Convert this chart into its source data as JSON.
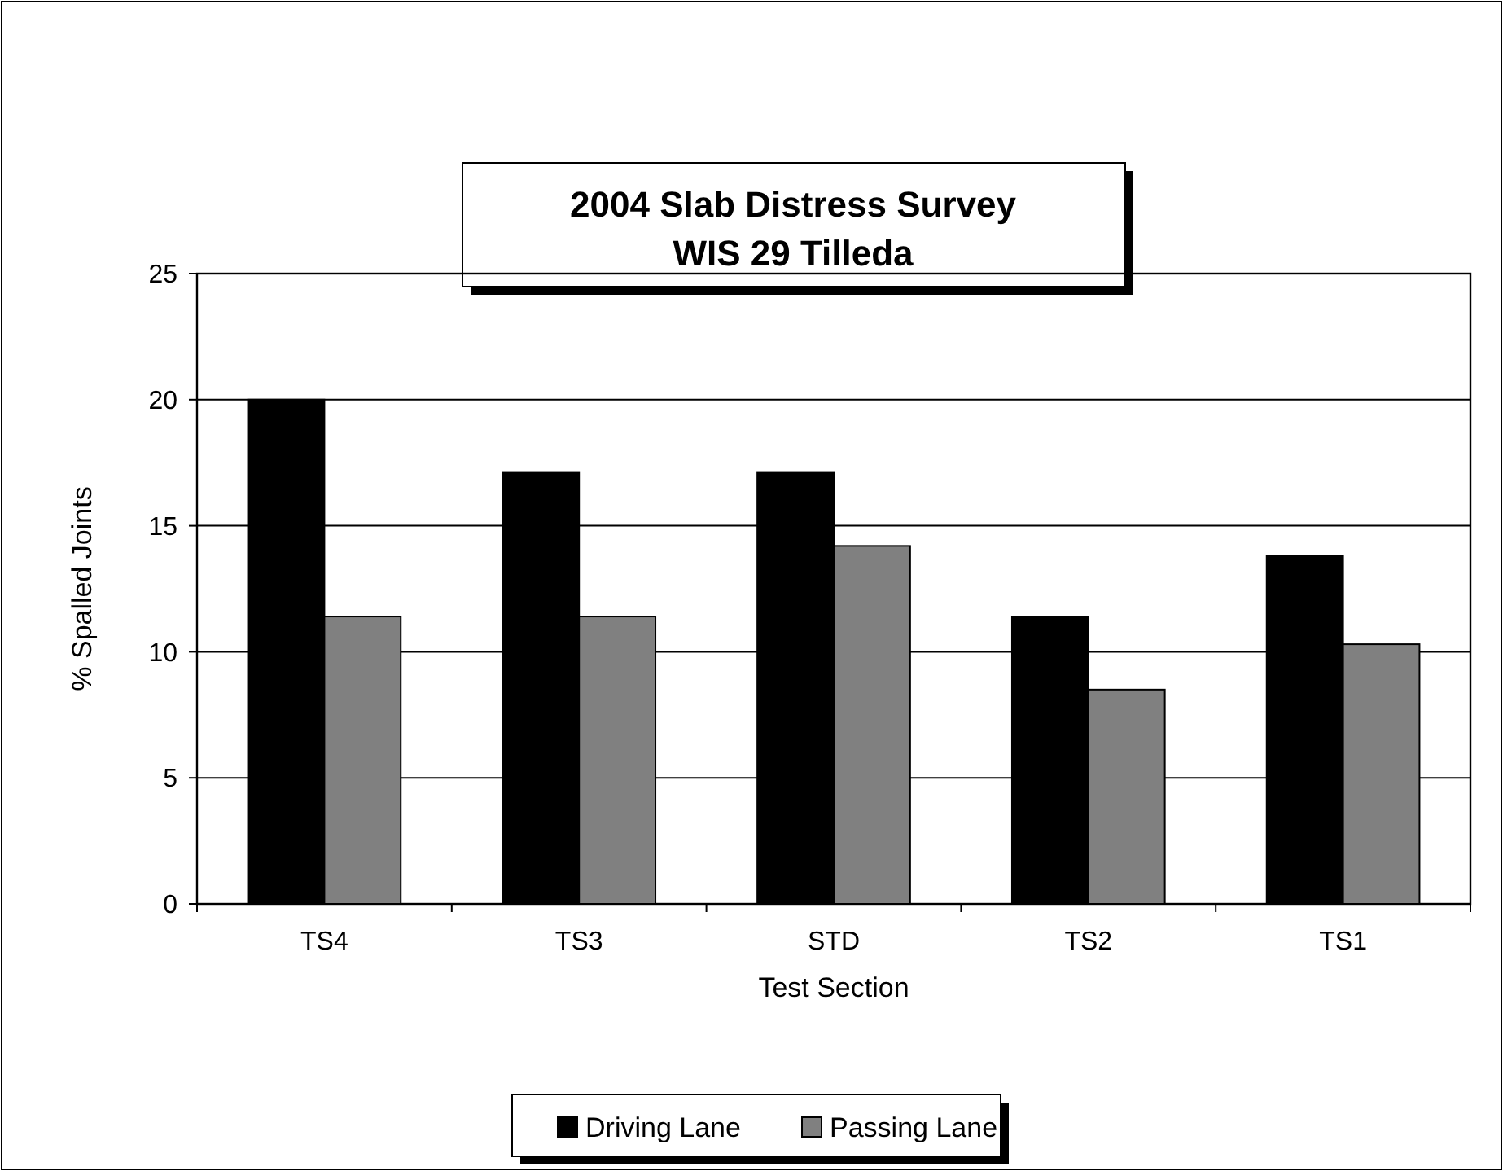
{
  "chart_data": {
    "type": "bar",
    "title": "2004 Slab Distress Survey\nWIS 29 Tilleda",
    "xlabel": "Test Section",
    "ylabel": "% Spalled Joints",
    "categories": [
      "TS4",
      "TS3",
      "STD",
      "TS2",
      "TS1"
    ],
    "series": [
      {
        "name": "Driving Lane",
        "color": "#000000",
        "values": [
          20,
          17.1,
          17.1,
          11.4,
          13.8
        ]
      },
      {
        "name": "Passing Lane",
        "color": "#808080",
        "values": [
          11.4,
          11.4,
          14.2,
          8.5,
          10.3
        ]
      }
    ],
    "ylim": [
      0,
      25
    ],
    "yticks": [
      0,
      5,
      10,
      15,
      20,
      25
    ],
    "grid": "y",
    "legend": "bottom"
  }
}
